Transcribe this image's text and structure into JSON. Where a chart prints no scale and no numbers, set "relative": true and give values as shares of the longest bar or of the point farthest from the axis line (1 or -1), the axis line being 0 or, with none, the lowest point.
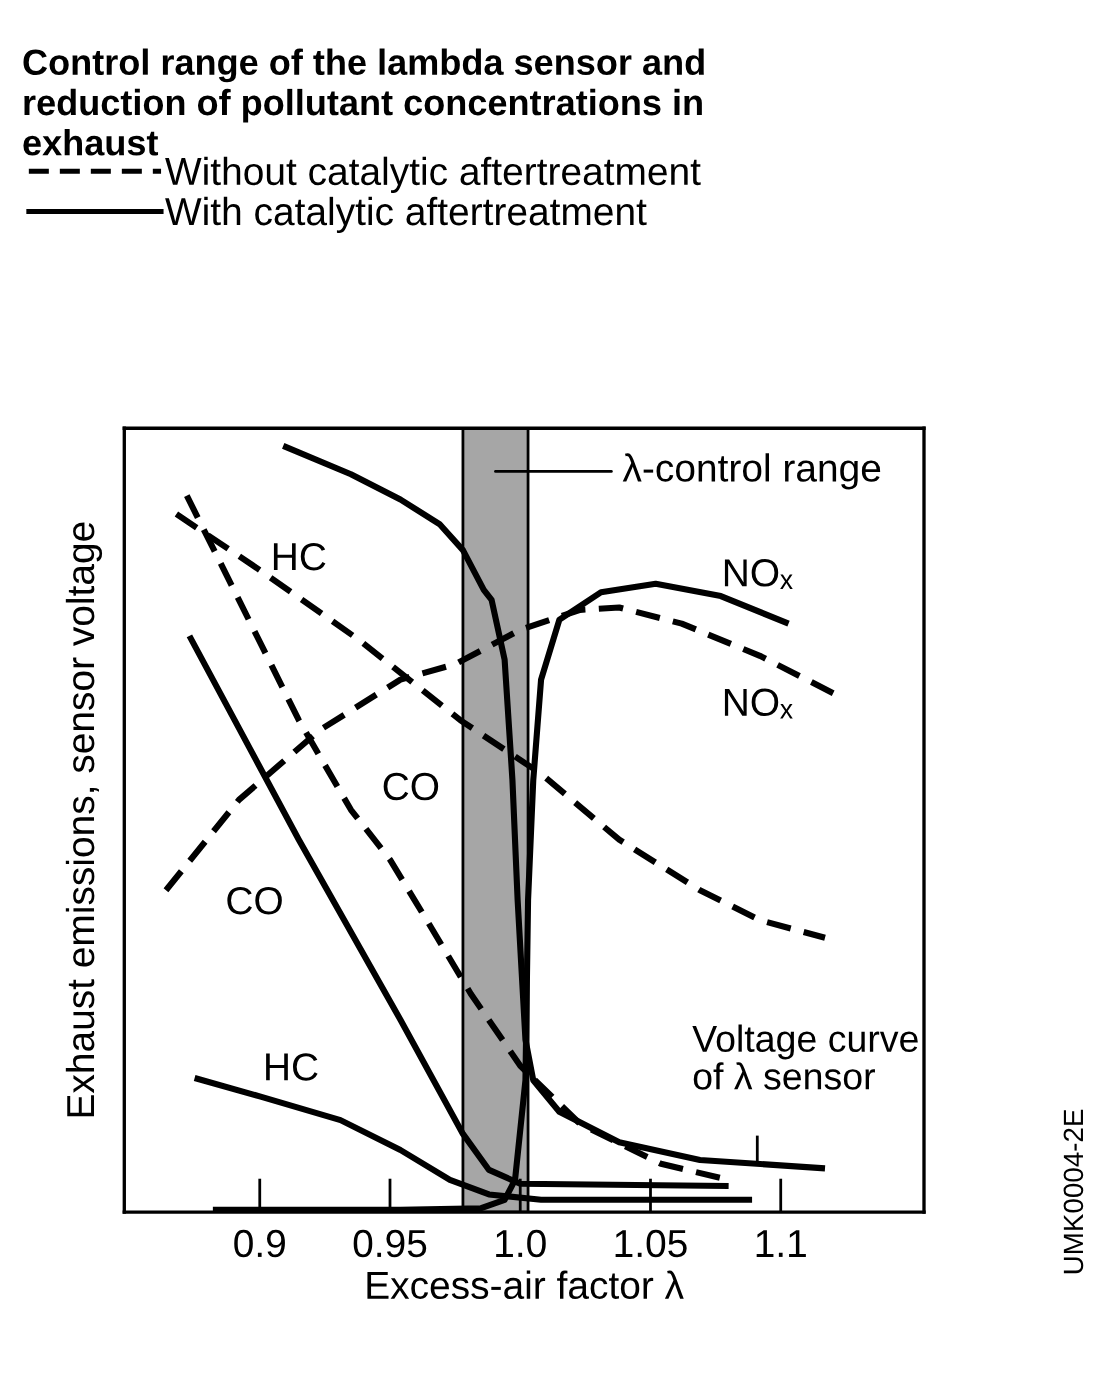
{
  "chart_data": {
    "type": "line",
    "relative": true,
    "title": "Control range of the lambda sensor and\nreduction of pollutant concentrations in\nexhaust",
    "xlabel": "Excess-air factor λ",
    "ylabel": "Exhaust emissions, sensor voltage",
    "xlim": [
      0.848,
      1.155
    ],
    "xticks": [
      0.9,
      0.95,
      {
        "value": 1.0,
        "label": "1.0"
      },
      1.05,
      1.1
    ],
    "tick_labels": "x",
    "grid": false,
    "legend": "top",
    "marker": "none",
    "series": [
      {
        "name": "HC",
        "color": "#000000",
        "line_style": "dashed",
        "x": [
          0.868,
          0.9,
          0.938,
          0.977,
          1.008,
          1.038,
          1.069,
          1.092,
          1.117
        ],
        "values": [
          0.911,
          0.838,
          0.747,
          0.642,
          0.572,
          0.486,
          0.42,
          0.381,
          0.358
        ]
      },
      {
        "name": "CO",
        "color": "#000000",
        "line_style": "dashed",
        "x": [
          0.872,
          0.892,
          0.915,
          0.935,
          0.95,
          0.965,
          0.981,
          1.0,
          1.023,
          1.054,
          1.08
        ],
        "values": [
          0.935,
          0.799,
          0.642,
          0.525,
          0.46,
          0.376,
          0.285,
          0.191,
          0.115,
          0.063,
          0.042
        ]
      },
      {
        "name": "NOₓ",
        "color": "#000000",
        "line_style": "dashed",
        "x": [
          0.864,
          0.892,
          0.923,
          0.954,
          0.975,
          1.0,
          1.023,
          1.038,
          1.062,
          1.092,
          1.122
        ],
        "values": [
          0.42,
          0.538,
          0.629,
          0.695,
          0.715,
          0.76,
          0.786,
          0.789,
          0.768,
          0.726,
          0.674
        ]
      },
      {
        "name": "HC",
        "color": "#000000",
        "line_style": "solid",
        "x": [
          0.875,
          0.9,
          0.931,
          0.954,
          0.973,
          0.988,
          1.008,
          1.089
        ],
        "values": [
          0.175,
          0.151,
          0.12,
          0.081,
          0.042,
          0.023,
          0.016,
          0.016
        ]
      },
      {
        "name": "CO",
        "color": "#000000",
        "line_style": "solid",
        "x": [
          0.873,
          0.915,
          0.954,
          0.978,
          0.988,
          1.0,
          1.08
        ],
        "values": [
          0.752,
          0.486,
          0.251,
          0.102,
          0.055,
          0.037,
          0.034
        ]
      },
      {
        "name": "NOₓ",
        "color": "#000000",
        "line_style": "solid",
        "x": [
          0.882,
          0.954,
          0.985,
          0.994,
          0.998,
          1.002,
          1.003,
          1.005,
          1.008,
          1.015,
          1.031,
          1.052,
          1.077,
          1.103
        ],
        "values": [
          0.003,
          0.003,
          0.005,
          0.016,
          0.042,
          0.172,
          0.407,
          0.564,
          0.695,
          0.773,
          0.809,
          0.82,
          0.804,
          0.768
        ]
      },
      {
        "name": "Voltage curve\nof λ sensor",
        "color": "#000000",
        "line_style": "solid",
        "x": [
          0.909,
          0.935,
          0.954,
          0.969,
          0.978,
          0.986,
          0.989,
          0.994,
          0.997,
          0.999,
          1.002,
          1.005,
          1.015,
          1.038,
          1.069,
          1.117
        ],
        "values": [
          1.0,
          0.963,
          0.93,
          0.898,
          0.864,
          0.812,
          0.799,
          0.721,
          0.564,
          0.407,
          0.225,
          0.172,
          0.131,
          0.091,
          0.068,
          0.057
        ]
      }
    ],
    "bands": [
      {
        "axis": "x",
        "from": 0.978,
        "to": 1.003,
        "label": "λ-control range",
        "color": "#a6a6a6"
      }
    ],
    "annotations": [
      "Without catalytic aftertreatment",
      "With catalytic aftertreatment",
      "UMK0004-2E"
    ]
  }
}
